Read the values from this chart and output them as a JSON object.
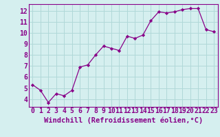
{
  "x": [
    0,
    1,
    2,
    3,
    4,
    5,
    6,
    7,
    8,
    9,
    10,
    11,
    12,
    13,
    14,
    15,
    16,
    17,
    18,
    19,
    20,
    21,
    22,
    23
  ],
  "y": [
    5.3,
    4.8,
    3.7,
    4.5,
    4.3,
    4.8,
    6.9,
    7.1,
    8.0,
    8.8,
    8.6,
    8.4,
    9.7,
    9.5,
    9.8,
    11.1,
    11.9,
    11.8,
    11.9,
    12.1,
    12.2,
    12.2,
    10.3,
    10.1
  ],
  "line_color": "#880088",
  "marker": "D",
  "marker_size": 2.2,
  "background_color": "#d5efef",
  "grid_color": "#b0d8d8",
  "xlabel": "Windchill (Refroidissement éolien,°C)",
  "xlabel_fontsize": 7.5,
  "tick_fontsize": 7.0,
  "xlim": [
    -0.5,
    23.5
  ],
  "ylim": [
    3.3,
    12.6
  ],
  "yticks": [
    4,
    5,
    6,
    7,
    8,
    9,
    10,
    11,
    12
  ],
  "xticks": [
    0,
    1,
    2,
    3,
    4,
    5,
    6,
    7,
    8,
    9,
    10,
    11,
    12,
    13,
    14,
    15,
    16,
    17,
    18,
    19,
    20,
    21,
    22,
    23
  ]
}
